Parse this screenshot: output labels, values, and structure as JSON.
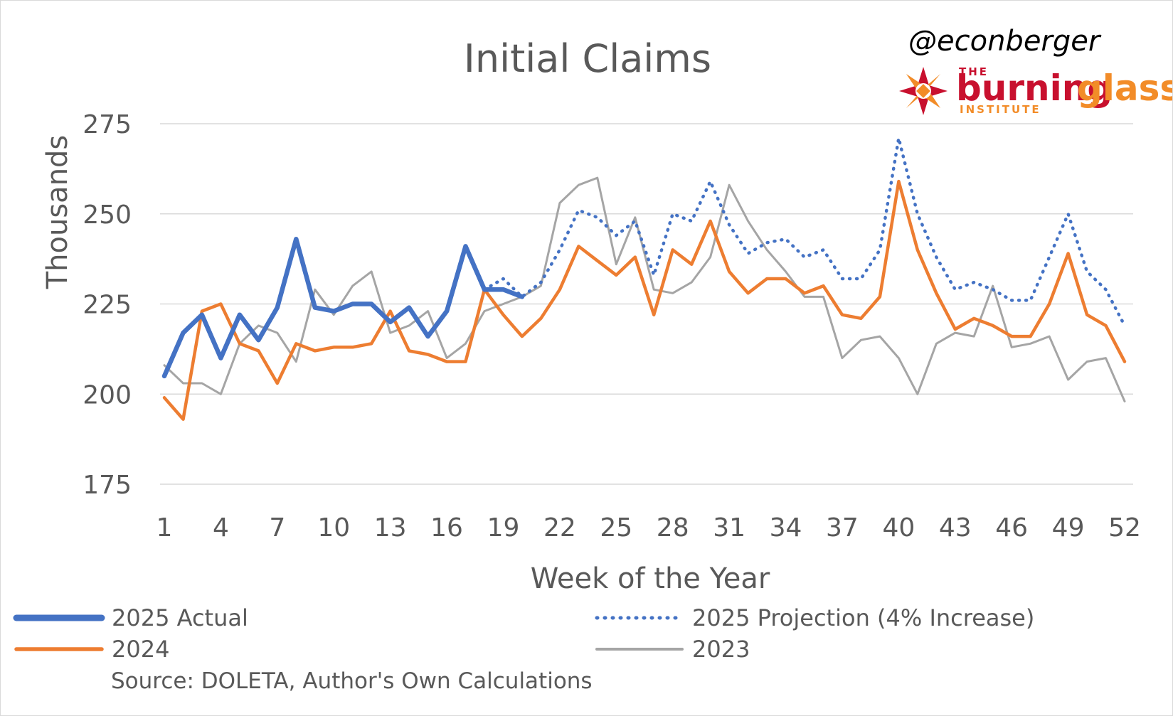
{
  "chart_data": {
    "type": "line",
    "title": "Initial Claims",
    "xlabel": "Week of the Year",
    "ylabel": "Thousands",
    "ylim": [
      175,
      275
    ],
    "yticks": [
      175,
      200,
      225,
      250,
      275
    ],
    "xlim": [
      1,
      52
    ],
    "xticks": [
      1,
      4,
      7,
      10,
      13,
      16,
      19,
      22,
      25,
      28,
      31,
      34,
      37,
      40,
      43,
      46,
      49,
      52
    ],
    "grid": "horizontal",
    "legend_position": "bottom",
    "series": [
      {
        "name": "2025 Actual",
        "color": "#4472c4",
        "style": "solid-thick",
        "x": [
          1,
          2,
          3,
          4,
          5,
          6,
          7,
          8,
          9,
          10,
          11,
          12,
          13,
          14,
          15,
          16,
          17,
          18,
          19,
          20
        ],
        "values": [
          205,
          217,
          222,
          210,
          222,
          215,
          224,
          243,
          224,
          223,
          225,
          225,
          220,
          224,
          216,
          223,
          241,
          229,
          229,
          227
        ]
      },
      {
        "name": "2025 Projection (4% Increase)",
        "color": "#4472c4",
        "style": "dotted",
        "x": [
          18,
          19,
          20,
          21,
          22,
          23,
          24,
          25,
          26,
          27,
          28,
          29,
          30,
          31,
          32,
          33,
          34,
          35,
          36,
          37,
          38,
          39,
          40,
          41,
          42,
          43,
          44,
          45,
          46,
          47,
          48,
          49,
          50,
          51,
          52
        ],
        "values": [
          229,
          232,
          227,
          231,
          240,
          251,
          249,
          244,
          248,
          233,
          250,
          248,
          259,
          247,
          239,
          242,
          243,
          238,
          240,
          232,
          232,
          240,
          271,
          250,
          238,
          229,
          231,
          229,
          226,
          226,
          238,
          250,
          234,
          229,
          219
        ]
      },
      {
        "name": "2024",
        "color": "#ed7d31",
        "style": "solid",
        "x": [
          1,
          2,
          3,
          4,
          5,
          6,
          7,
          8,
          9,
          10,
          11,
          12,
          13,
          14,
          15,
          16,
          17,
          18,
          19,
          20,
          21,
          22,
          23,
          24,
          25,
          26,
          27,
          28,
          29,
          30,
          31,
          32,
          33,
          34,
          35,
          36,
          37,
          38,
          39,
          40,
          41,
          42,
          43,
          44,
          45,
          46,
          47,
          48,
          49,
          50,
          51,
          52
        ],
        "values": [
          199,
          193,
          223,
          225,
          214,
          212,
          203,
          214,
          212,
          213,
          213,
          214,
          223,
          212,
          211,
          209,
          209,
          229,
          222,
          216,
          221,
          229,
          241,
          237,
          233,
          238,
          222,
          240,
          236,
          248,
          234,
          228,
          232,
          232,
          228,
          230,
          222,
          221,
          227,
          259,
          240,
          228,
          218,
          221,
          219,
          216,
          216,
          225,
          239,
          222,
          219,
          209
        ]
      },
      {
        "name": "2023",
        "color": "#a5a5a5",
        "style": "solid-thin",
        "x": [
          1,
          2,
          3,
          4,
          5,
          6,
          7,
          8,
          9,
          10,
          11,
          12,
          13,
          14,
          15,
          16,
          17,
          18,
          19,
          20,
          21,
          22,
          23,
          24,
          25,
          26,
          27,
          28,
          29,
          30,
          31,
          32,
          33,
          34,
          35,
          36,
          37,
          38,
          39,
          40,
          41,
          42,
          43,
          44,
          45,
          46,
          47,
          48,
          49,
          50,
          51,
          52
        ],
        "values": [
          208,
          203,
          203,
          200,
          214,
          219,
          217,
          209,
          229,
          222,
          230,
          234,
          217,
          219,
          223,
          210,
          214,
          223,
          225,
          227,
          230,
          253,
          258,
          260,
          236,
          249,
          229,
          228,
          231,
          238,
          258,
          248,
          240,
          234,
          227,
          227,
          210,
          215,
          216,
          210,
          200,
          214,
          217,
          216,
          230,
          213,
          214,
          216,
          204,
          209,
          210,
          198
        ]
      }
    ],
    "annotations": [
      "Source: DOLETA, Author's Own Calculations"
    ]
  },
  "branding": {
    "handle": "@econberger",
    "logo_word1": "burning",
    "logo_word2": "glass",
    "logo_top": "THE",
    "logo_bottom": "INSTITUTE",
    "logo_red": "#c8102e",
    "logo_orange": "#f28c28"
  }
}
